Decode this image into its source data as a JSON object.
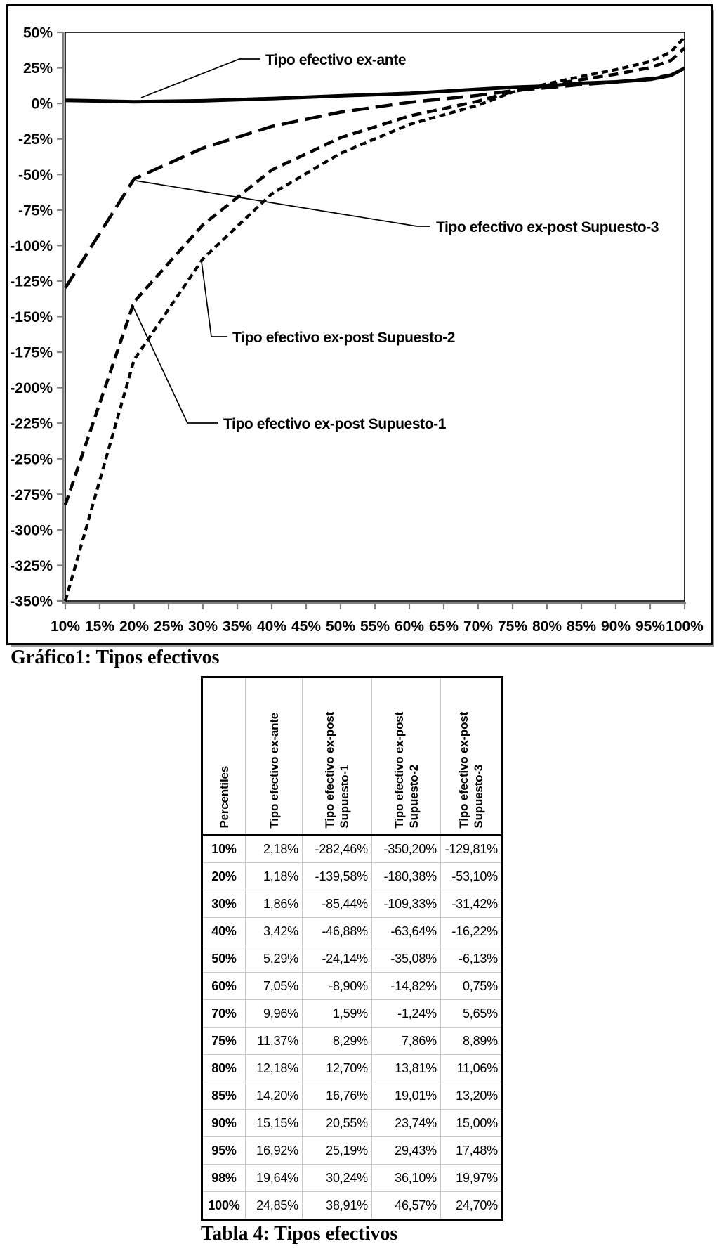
{
  "chart_figure": {
    "caption": "Gráfico1: Tipos efectivos"
  },
  "chart_data": {
    "type": "line",
    "title": "",
    "xlabel": "",
    "ylabel": "",
    "xlim": [
      10,
      100
    ],
    "ylim": [
      -350,
      50
    ],
    "grid": false,
    "legend_position": "callout-annotations",
    "x": [
      10,
      20,
      30,
      40,
      50,
      60,
      70,
      75,
      80,
      85,
      90,
      95,
      98,
      100
    ],
    "x_tick_labels": [
      "10%",
      "15%",
      "20%",
      "25%",
      "30%",
      "35%",
      "40%",
      "45%",
      "50%",
      "55%",
      "60%",
      "65%",
      "70%",
      "75%",
      "80%",
      "85%",
      "90%",
      "95%",
      "100%"
    ],
    "y_tick_labels": [
      "50%",
      "25%",
      "0%",
      "-25%",
      "-50%",
      "-75%",
      "-100%",
      "-125%",
      "-150%",
      "-175%",
      "-200%",
      "-225%",
      "-250%",
      "-275%",
      "-300%",
      "-325%",
      "-350%"
    ],
    "y_tick_step": 25,
    "series": [
      {
        "name": "Tipo efectivo ex-ante",
        "line_style": "solid",
        "values": [
          2.18,
          1.18,
          1.86,
          3.42,
          5.29,
          7.05,
          9.96,
          11.37,
          12.18,
          14.2,
          15.15,
          16.92,
          19.64,
          24.85
        ]
      },
      {
        "name": "Tipo efectivo ex-post Supuesto-1",
        "line_style": "dashed",
        "values": [
          -282.46,
          -139.58,
          -85.44,
          -46.88,
          -24.14,
          -8.9,
          1.59,
          8.29,
          12.7,
          16.76,
          20.55,
          25.19,
          30.24,
          38.91
        ]
      },
      {
        "name": "Tipo efectivo ex-post Supuesto-2",
        "line_style": "short-dashed",
        "values": [
          -350.2,
          -180.38,
          -109.33,
          -63.64,
          -35.08,
          -14.82,
          -1.24,
          7.86,
          13.81,
          19.01,
          23.74,
          29.43,
          36.1,
          46.57
        ]
      },
      {
        "name": "Tipo efectivo ex-post Supuesto-3",
        "line_style": "long-dashed",
        "values": [
          -129.81,
          -53.1,
          -31.42,
          -16.22,
          -6.13,
          0.75,
          5.65,
          8.89,
          11.06,
          13.2,
          15.0,
          17.48,
          19.97,
          24.7
        ]
      }
    ],
    "annotations": [
      "Tipo efectivo ex-ante",
      "Tipo efectivo ex-post Supuesto-3",
      "Tipo efectivo ex-post Supuesto-2",
      "Tipo efectivo ex-post Supuesto-1"
    ]
  },
  "table": {
    "caption": "Tabla 4: Tipos efectivos",
    "columns": [
      "Percentiles",
      "Tipo efectivo ex-ante",
      "Tipo efectivo ex-post\nSupuesto-1",
      "Tipo efectivo ex-post\nSupuesto-2",
      "Tipo efectivo ex-post\nSupuesto-3"
    ],
    "rows": [
      [
        "10%",
        "2,18%",
        "-282,46%",
        "-350,20%",
        "-129,81%"
      ],
      [
        "20%",
        "1,18%",
        "-139,58%",
        "-180,38%",
        "-53,10%"
      ],
      [
        "30%",
        "1,86%",
        "-85,44%",
        "-109,33%",
        "-31,42%"
      ],
      [
        "40%",
        "3,42%",
        "-46,88%",
        "-63,64%",
        "-16,22%"
      ],
      [
        "50%",
        "5,29%",
        "-24,14%",
        "-35,08%",
        "-6,13%"
      ],
      [
        "60%",
        "7,05%",
        "-8,90%",
        "-14,82%",
        "0,75%"
      ],
      [
        "70%",
        "9,96%",
        "1,59%",
        "-1,24%",
        "5,65%"
      ],
      [
        "75%",
        "11,37%",
        "8,29%",
        "7,86%",
        "8,89%"
      ],
      [
        "80%",
        "12,18%",
        "12,70%",
        "13,81%",
        "11,06%"
      ],
      [
        "85%",
        "14,20%",
        "16,76%",
        "19,01%",
        "13,20%"
      ],
      [
        "90%",
        "15,15%",
        "20,55%",
        "23,74%",
        "15,00%"
      ],
      [
        "95%",
        "16,92%",
        "25,19%",
        "29,43%",
        "17,48%"
      ],
      [
        "98%",
        "19,64%",
        "30,24%",
        "36,10%",
        "19,97%"
      ],
      [
        "100%",
        "24,85%",
        "38,91%",
        "46,57%",
        "24,70%"
      ]
    ]
  },
  "colors": {
    "line": "#000000",
    "text": "#000000",
    "axis_gray": "#808080",
    "table_grid": "#c9c9c9",
    "shadow_gray": "#9a9a9a",
    "background": "#ffffff"
  }
}
